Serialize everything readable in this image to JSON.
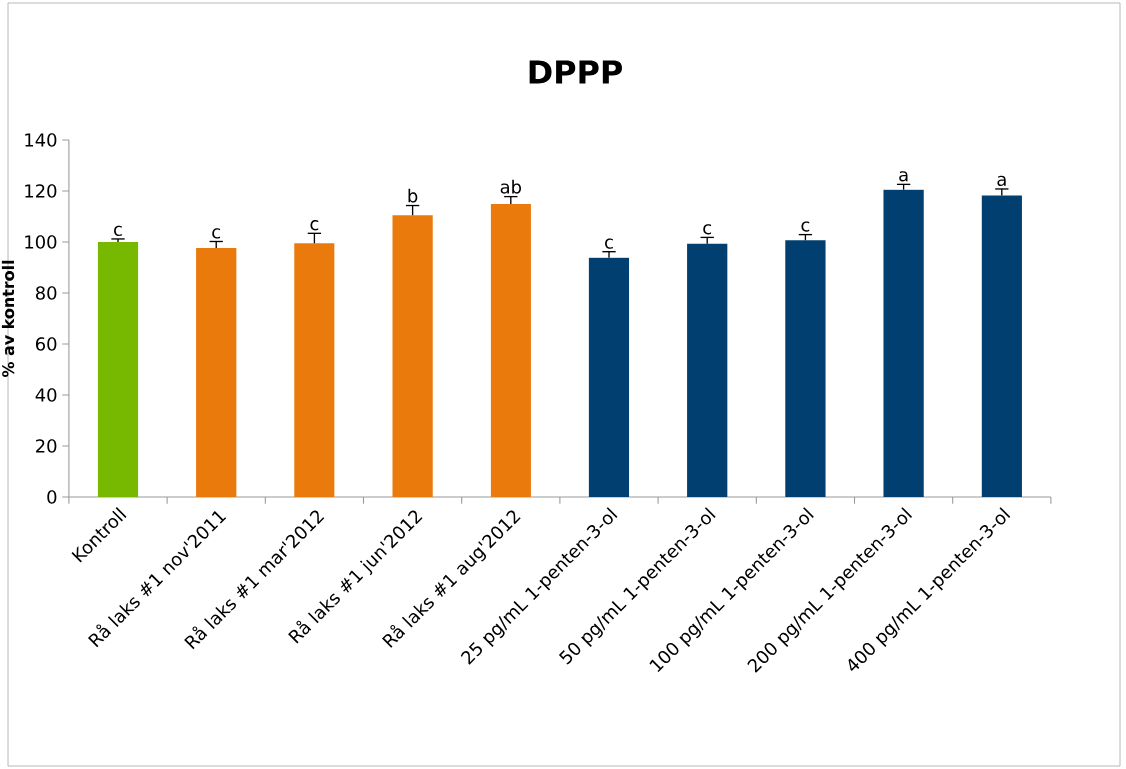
{
  "chart_data": {
    "type": "bar",
    "title": "DPPP",
    "ylabel": "% av kontroll",
    "categories": [
      "Kontroll",
      "Rå laks #1 nov'2011",
      "Rå laks #1 mar'2012",
      "Rå laks #1 jun'2012",
      "Rå laks #1 aug'2012",
      "25 pg/mL 1-penten-3-ol",
      "50 pg/mL 1-penten-3-ol",
      "100 pg/mL 1-penten-3-ol",
      "200 pg/mL 1-penten-3-ol",
      "400 pg/mL 1-penten-3-ol"
    ],
    "values": [
      100,
      97.6,
      99.5,
      110.5,
      114.9,
      93.8,
      99.3,
      100.7,
      120.5,
      118.2
    ],
    "errors": [
      1.2,
      2.6,
      3.9,
      3.8,
      2.9,
      2.4,
      2.5,
      2.2,
      2.1,
      2.6
    ],
    "colors": [
      "#77b800",
      "#ea7a0b",
      "#ea7a0b",
      "#ea7a0b",
      "#ea7a0b",
      "#013f71",
      "#013f71",
      "#013f71",
      "#013f71",
      "#013f71"
    ],
    "ylim": [
      0,
      140
    ],
    "yticks": [
      0,
      20,
      40,
      60,
      80,
      100,
      120,
      140
    ],
    "grid": false,
    "annotations": [
      {
        "text": "c",
        "x": "Kontroll",
        "y": 101.2
      },
      {
        "text": "c",
        "x": "Rå laks #1 nov'2011",
        "y": 100.2
      },
      {
        "text": "c",
        "x": "Rå laks #1 mar'2012",
        "y": 103.4
      },
      {
        "text": "b",
        "x": "Rå laks #1 jun'2012",
        "y": 114.3
      },
      {
        "text": "ab",
        "x": "Rå laks #1 aug'2012",
        "y": 117.8
      },
      {
        "text": "c",
        "x": "25 pg/mL 1-penten-3-ol",
        "y": 96.2
      },
      {
        "text": "c",
        "x": "50 pg/mL 1-penten-3-ol",
        "y": 101.8
      },
      {
        "text": "c",
        "x": "100 pg/mL 1-penten-3-ol",
        "y": 102.9
      },
      {
        "text": "a",
        "x": "200 pg/mL 1-penten-3-ol",
        "y": 122.6
      },
      {
        "text": "a",
        "x": "400 pg/mL 1-penten-3-ol",
        "y": 120.8
      }
    ]
  }
}
